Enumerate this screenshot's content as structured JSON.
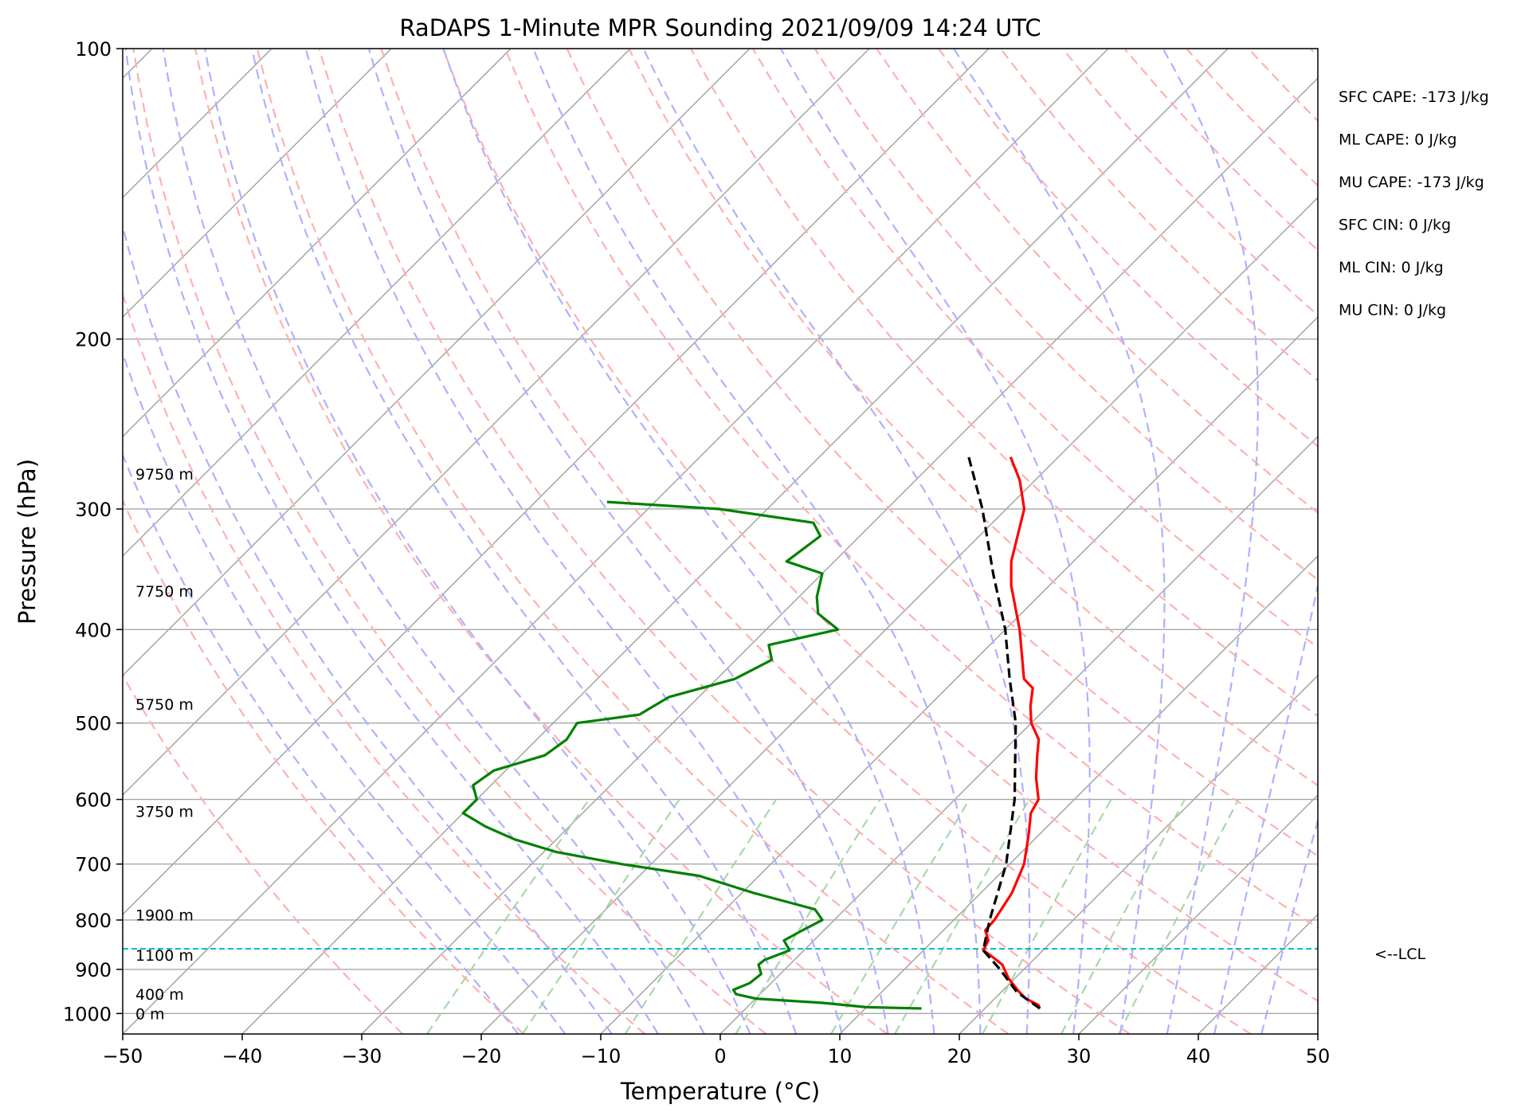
{
  "chart_data": {
    "type": "line",
    "subtype": "skew-t-log-p",
    "title": "RaDAPS 1-Minute MPR Sounding 2021/09/09 14:24 UTC",
    "xlabel": "Temperature (°C)",
    "ylabel": "Pressure (hPa)",
    "xlim": [
      -50,
      50
    ],
    "ylim": [
      1050,
      100
    ],
    "y_scale": "log",
    "skew_degrees": 45,
    "x_ticks": [
      -50,
      -40,
      -30,
      -20,
      -10,
      0,
      10,
      20,
      30,
      40,
      50
    ],
    "x_tick_labels": [
      "−50",
      "−40",
      "−30",
      "−20",
      "−10",
      "0",
      "10",
      "20",
      "30",
      "40",
      "50"
    ],
    "y_ticks": [
      100,
      200,
      300,
      400,
      500,
      600,
      700,
      800,
      900,
      1000
    ],
    "y_tick_labels": [
      "100",
      "200",
      "300",
      "400",
      "500",
      "600",
      "700",
      "800",
      "900",
      "1000"
    ],
    "grid": true,
    "background_lines": {
      "isotherms_color": "#a0a0a0",
      "dry_adiabats_color": "#ffb0b0",
      "moist_adiabats_color": "#b0b0ff",
      "mixing_ratio_color": "#a8d8a8"
    },
    "series": [
      {
        "role": "temperature",
        "color": "#ff0000",
        "points": [
          {
            "p": 988,
            "t": 24.6
          },
          {
            "p": 980,
            "t": 24.2
          },
          {
            "p": 965,
            "t": 22.6
          },
          {
            "p": 950,
            "t": 21.5
          },
          {
            "p": 920,
            "t": 19.5
          },
          {
            "p": 890,
            "t": 17.8
          },
          {
            "p": 870,
            "t": 16.0
          },
          {
            "p": 860,
            "t": 15.0
          },
          {
            "p": 840,
            "t": 14.6
          },
          {
            "p": 820,
            "t": 13.5
          },
          {
            "p": 800,
            "t": 13.4
          },
          {
            "p": 750,
            "t": 12.6
          },
          {
            "p": 700,
            "t": 11.2
          },
          {
            "p": 650,
            "t": 9.0
          },
          {
            "p": 620,
            "t": 7.5
          },
          {
            "p": 600,
            "t": 7.0
          },
          {
            "p": 570,
            "t": 5.0
          },
          {
            "p": 540,
            "t": 3.2
          },
          {
            "p": 520,
            "t": 2.0
          },
          {
            "p": 500,
            "t": 0.0
          },
          {
            "p": 480,
            "t": -1.5
          },
          {
            "p": 460,
            "t": -2.8
          },
          {
            "p": 450,
            "t": -4.3
          },
          {
            "p": 400,
            "t": -8.8
          },
          {
            "p": 360,
            "t": -13.2
          },
          {
            "p": 340,
            "t": -15.2
          },
          {
            "p": 300,
            "t": -18.5
          },
          {
            "p": 280,
            "t": -21.3
          },
          {
            "p": 265,
            "t": -24.0
          }
        ]
      },
      {
        "role": "dewpoint",
        "color": "#008000",
        "points": [
          {
            "p": 988,
            "t": 14.7
          },
          {
            "p": 985,
            "t": 10.0
          },
          {
            "p": 975,
            "t": 6.0
          },
          {
            "p": 965,
            "t": 0.0
          },
          {
            "p": 955,
            "t": -2.0
          },
          {
            "p": 945,
            "t": -2.6
          },
          {
            "p": 930,
            "t": -1.8
          },
          {
            "p": 910,
            "t": -1.6
          },
          {
            "p": 890,
            "t": -2.6
          },
          {
            "p": 880,
            "t": -2.5
          },
          {
            "p": 860,
            "t": -1.2
          },
          {
            "p": 840,
            "t": -2.5
          },
          {
            "p": 820,
            "t": -1.8
          },
          {
            "p": 800,
            "t": -1.0
          },
          {
            "p": 780,
            "t": -2.5
          },
          {
            "p": 750,
            "t": -9.0
          },
          {
            "p": 720,
            "t": -15.0
          },
          {
            "p": 700,
            "t": -22.5
          },
          {
            "p": 680,
            "t": -29.0
          },
          {
            "p": 660,
            "t": -33.5
          },
          {
            "p": 640,
            "t": -37.0
          },
          {
            "p": 620,
            "t": -40.0
          },
          {
            "p": 600,
            "t": -40.0
          },
          {
            "p": 580,
            "t": -41.5
          },
          {
            "p": 560,
            "t": -41.0
          },
          {
            "p": 540,
            "t": -38.0
          },
          {
            "p": 520,
            "t": -37.5
          },
          {
            "p": 500,
            "t": -38.0
          },
          {
            "p": 490,
            "t": -33.5
          },
          {
            "p": 470,
            "t": -32.5
          },
          {
            "p": 450,
            "t": -28.5
          },
          {
            "p": 430,
            "t": -27.0
          },
          {
            "p": 415,
            "t": -28.5
          },
          {
            "p": 400,
            "t": -24.0
          },
          {
            "p": 385,
            "t": -27.0
          },
          {
            "p": 370,
            "t": -28.5
          },
          {
            "p": 350,
            "t": -30.0
          },
          {
            "p": 340,
            "t": -34.0
          },
          {
            "p": 320,
            "t": -33.3
          },
          {
            "p": 310,
            "t": -35.0
          },
          {
            "p": 300,
            "t": -44.0
          },
          {
            "p": 295,
            "t": -54.0
          }
        ]
      },
      {
        "role": "parcel",
        "color": "#000000",
        "dashed": true,
        "points": [
          {
            "p": 988,
            "t": 24.6
          },
          {
            "p": 950,
            "t": 21.3
          },
          {
            "p": 900,
            "t": 18.0
          },
          {
            "p": 860,
            "t": 15.0
          },
          {
            "p": 800,
            "t": 13.0
          },
          {
            "p": 700,
            "t": 9.7
          },
          {
            "p": 600,
            "t": 5.0
          },
          {
            "p": 500,
            "t": -1.3
          },
          {
            "p": 450,
            "t": -5.5
          },
          {
            "p": 400,
            "t": -10.0
          },
          {
            "p": 350,
            "t": -15.7
          },
          {
            "p": 300,
            "t": -22.0
          },
          {
            "p": 265,
            "t": -27.5
          }
        ]
      }
    ],
    "lcl": {
      "p": 857,
      "label": "<--LCL",
      "color": "#00bbbb"
    },
    "height_labels": [
      {
        "p": 1000,
        "label": "0 m"
      },
      {
        "p": 955,
        "label": "400 m"
      },
      {
        "p": 870,
        "label": "1100 m"
      },
      {
        "p": 790,
        "label": "1900 m"
      },
      {
        "p": 617,
        "label": "3750 m"
      },
      {
        "p": 478,
        "label": "5750 m"
      },
      {
        "p": 365,
        "label": "7750 m"
      },
      {
        "p": 276,
        "label": "9750 m"
      }
    ],
    "annotations": [
      "SFC CAPE: -173 J/kg",
      "ML CAPE: 0 J/kg",
      "MU CAPE: -173 J/kg",
      "SFC CIN: 0 J/kg",
      "ML CIN: 0 J/kg",
      "MU CIN: 0 J/kg"
    ]
  }
}
